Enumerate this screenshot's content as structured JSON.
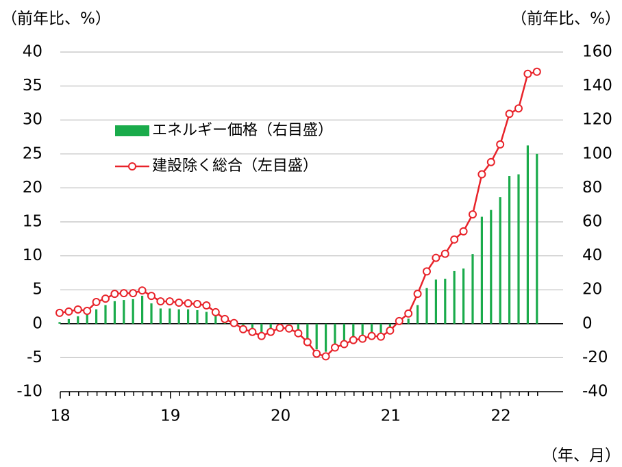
{
  "chart_data": {
    "type": "combo",
    "left_axis_label": "（前年比、%）",
    "right_axis_label": "（前年比、%）",
    "x_axis_label": "（年、月）",
    "categories": [
      "18",
      null,
      null,
      null,
      null,
      null,
      null,
      null,
      null,
      null,
      null,
      null,
      "19",
      null,
      null,
      null,
      null,
      null,
      null,
      null,
      null,
      null,
      null,
      null,
      "20",
      null,
      null,
      null,
      null,
      null,
      null,
      null,
      null,
      null,
      null,
      null,
      "21",
      null,
      null,
      null,
      null,
      null,
      null,
      null,
      null,
      null,
      null,
      null,
      "22",
      null,
      null,
      null,
      null
    ],
    "series": [
      {
        "name": "エネルギー価格（右目盛）",
        "type": "bar",
        "axis": "y2",
        "color": "#1aab4b",
        "values": [
          1,
          2.8,
          4.4,
          5.6,
          8.5,
          11,
          13.3,
          14,
          14.5,
          16.5,
          12,
          9,
          9,
          8.5,
          8.5,
          8,
          7,
          4.5,
          2.5,
          0.5,
          -2,
          -4,
          -6.5,
          -4.5,
          -2,
          -3,
          -5,
          -9,
          -15,
          -16.5,
          -12,
          -10,
          -8,
          -7,
          -5.5,
          -6,
          -3,
          1.5,
          3,
          11,
          21,
          26,
          26.5,
          31,
          32.5,
          41,
          63,
          67,
          74.5,
          87,
          88,
          105,
          100
        ]
      },
      {
        "name": "建設除く総合（左目盛）",
        "type": "line",
        "color": "#e8232a",
        "values": [
          1.6,
          1.8,
          2.1,
          1.9,
          3.2,
          3.7,
          4.4,
          4.5,
          4.5,
          4.9,
          4.1,
          3.3,
          3.3,
          3.1,
          3.0,
          2.9,
          2.7,
          1.7,
          0.7,
          0.1,
          -0.8,
          -1.2,
          -1.8,
          -1.2,
          -0.6,
          -0.7,
          -1.4,
          -2.7,
          -4.4,
          -4.8,
          -3.5,
          -3.0,
          -2.4,
          -2.2,
          -1.8,
          -1.9,
          -1.0,
          0.4,
          1.5,
          4.4,
          7.7,
          9.7,
          10.3,
          12.4,
          13.6,
          16.1,
          22.0,
          23.8,
          26.4,
          30.9,
          31.7,
          36.8,
          37.1
        ]
      }
    ],
    "ylim": [
      -10,
      40
    ],
    "yticks": [
      -10,
      -5,
      0,
      5,
      10,
      15,
      20,
      25,
      30,
      35,
      40
    ],
    "y2lim": [
      -40,
      160
    ],
    "y2ticks": [
      -40,
      -20,
      0,
      20,
      40,
      60,
      80,
      100,
      120,
      140,
      160
    ],
    "grid": true
  }
}
